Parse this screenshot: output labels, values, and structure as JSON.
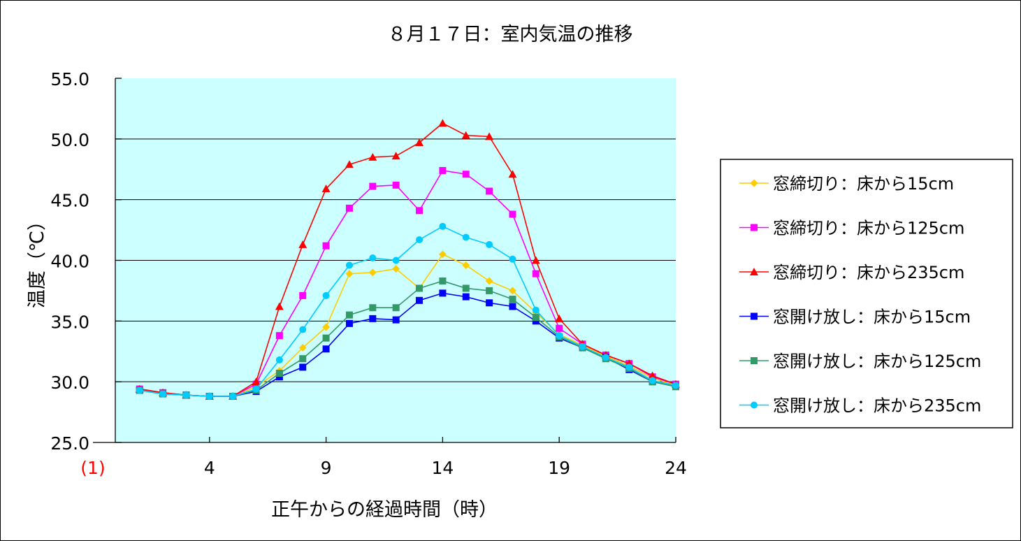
{
  "chart_data": {
    "type": "line",
    "title": "８月１７日：室内気温の推移",
    "xlabel": "正午からの経過時間（時）",
    "ylabel": "温度（℃）",
    "x": [
      1,
      2,
      3,
      4,
      5,
      6,
      7,
      8,
      9,
      10,
      11,
      12,
      13,
      14,
      15,
      16,
      17,
      18,
      19,
      20,
      21,
      22,
      23,
      24
    ],
    "xlim": [
      -1,
      24
    ],
    "ylim": [
      25,
      55
    ],
    "xticks": [
      -1,
      4,
      9,
      14,
      19,
      24
    ],
    "xtick_labels": [
      "(1)",
      "4",
      "9",
      "14",
      "19",
      "24"
    ],
    "xtick_colors": [
      "#ff0000",
      "#000000",
      "#000000",
      "#000000",
      "#000000",
      "#000000"
    ],
    "yticks": [
      25,
      30,
      35,
      40,
      45,
      50,
      55
    ],
    "ytick_labels": [
      "25.0",
      "30.0",
      "35.0",
      "40.0",
      "45.0",
      "50.0",
      "55.0"
    ],
    "grid": "horizontal",
    "plot_background": "#ccffff",
    "legend_position": "right",
    "series": [
      {
        "name": "窓締切り：床から15cm",
        "color": "#ffcc00",
        "marker": "diamond",
        "values": [
          29.4,
          29.1,
          28.9,
          28.8,
          28.8,
          29.6,
          30.9,
          32.8,
          34.5,
          38.9,
          39.0,
          39.3,
          37.7,
          40.5,
          39.6,
          38.3,
          37.5,
          35.7,
          33.9,
          33.0,
          32.1,
          31.3,
          30.3,
          29.7
        ]
      },
      {
        "name": "窓締切り：床から125cm",
        "color": "#ff00ff",
        "marker": "square",
        "values": [
          29.4,
          29.1,
          28.9,
          28.8,
          28.8,
          29.8,
          33.8,
          37.1,
          41.2,
          44.3,
          46.1,
          46.2,
          44.1,
          47.4,
          47.1,
          45.7,
          43.8,
          38.9,
          34.4,
          33.1,
          32.2,
          31.5,
          30.4,
          29.8
        ]
      },
      {
        "name": "窓締切り：床から235cm",
        "color": "#ff0000",
        "marker": "triangle",
        "values": [
          29.4,
          29.1,
          28.9,
          28.8,
          28.8,
          30.0,
          36.2,
          41.3,
          45.9,
          47.9,
          48.5,
          48.6,
          49.7,
          51.3,
          50.3,
          50.2,
          47.1,
          40.0,
          35.2,
          33.1,
          32.2,
          31.5,
          30.5,
          29.8
        ]
      },
      {
        "name": "窓開け放し：床から15cm",
        "color": "#0000ff",
        "marker": "square",
        "values": [
          29.3,
          29.0,
          28.9,
          28.8,
          28.8,
          29.2,
          30.4,
          31.2,
          32.7,
          34.8,
          35.2,
          35.1,
          36.7,
          37.3,
          37.0,
          36.5,
          36.2,
          35.0,
          33.6,
          32.8,
          32.0,
          31.0,
          30.0,
          29.6
        ]
      },
      {
        "name": "窓開け放し：床から125cm",
        "color": "#339966",
        "marker": "square",
        "values": [
          29.3,
          29.0,
          28.9,
          28.8,
          28.8,
          29.3,
          30.7,
          31.9,
          33.6,
          35.5,
          36.1,
          36.1,
          37.7,
          38.3,
          37.7,
          37.5,
          36.8,
          35.3,
          33.7,
          32.8,
          31.9,
          31.1,
          30.0,
          29.6
        ]
      },
      {
        "name": "窓開け放し：床から235cm",
        "color": "#00ccff",
        "marker": "circle",
        "values": [
          29.3,
          29.0,
          28.9,
          28.8,
          28.8,
          29.4,
          31.8,
          34.3,
          37.1,
          39.6,
          40.2,
          40.0,
          41.7,
          42.8,
          41.9,
          41.3,
          40.1,
          35.9,
          33.8,
          32.9,
          32.0,
          31.2,
          30.1,
          29.7
        ]
      }
    ]
  }
}
